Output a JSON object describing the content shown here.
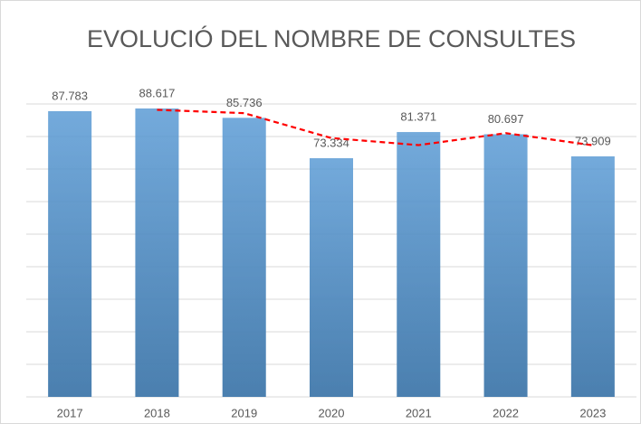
{
  "chart_data": {
    "type": "bar",
    "title": "EVOLUCIÓ DEL NOMBRE DE CONSULTES",
    "categories": [
      "2017",
      "2018",
      "2019",
      "2020",
      "2021",
      "2022",
      "2023"
    ],
    "values": [
      87783,
      88617,
      85736,
      73334,
      81371,
      80697,
      73909
    ],
    "value_labels": [
      "87.783",
      "88.617",
      "85.736",
      "73.334",
      "81.371",
      "80.697",
      "73.909"
    ],
    "color": "#5b9bd5",
    "trend": {
      "type": "line",
      "color": "#ff0000",
      "dashed": true,
      "values": [
        null,
        88200,
        87176.5,
        79535,
        77352.5,
        81034,
        77303
      ]
    },
    "ylim": [
      0,
      90000
    ],
    "yticks": [
      0,
      10000,
      20000,
      30000,
      40000,
      50000,
      60000,
      70000,
      80000,
      90000
    ],
    "grid": true
  }
}
